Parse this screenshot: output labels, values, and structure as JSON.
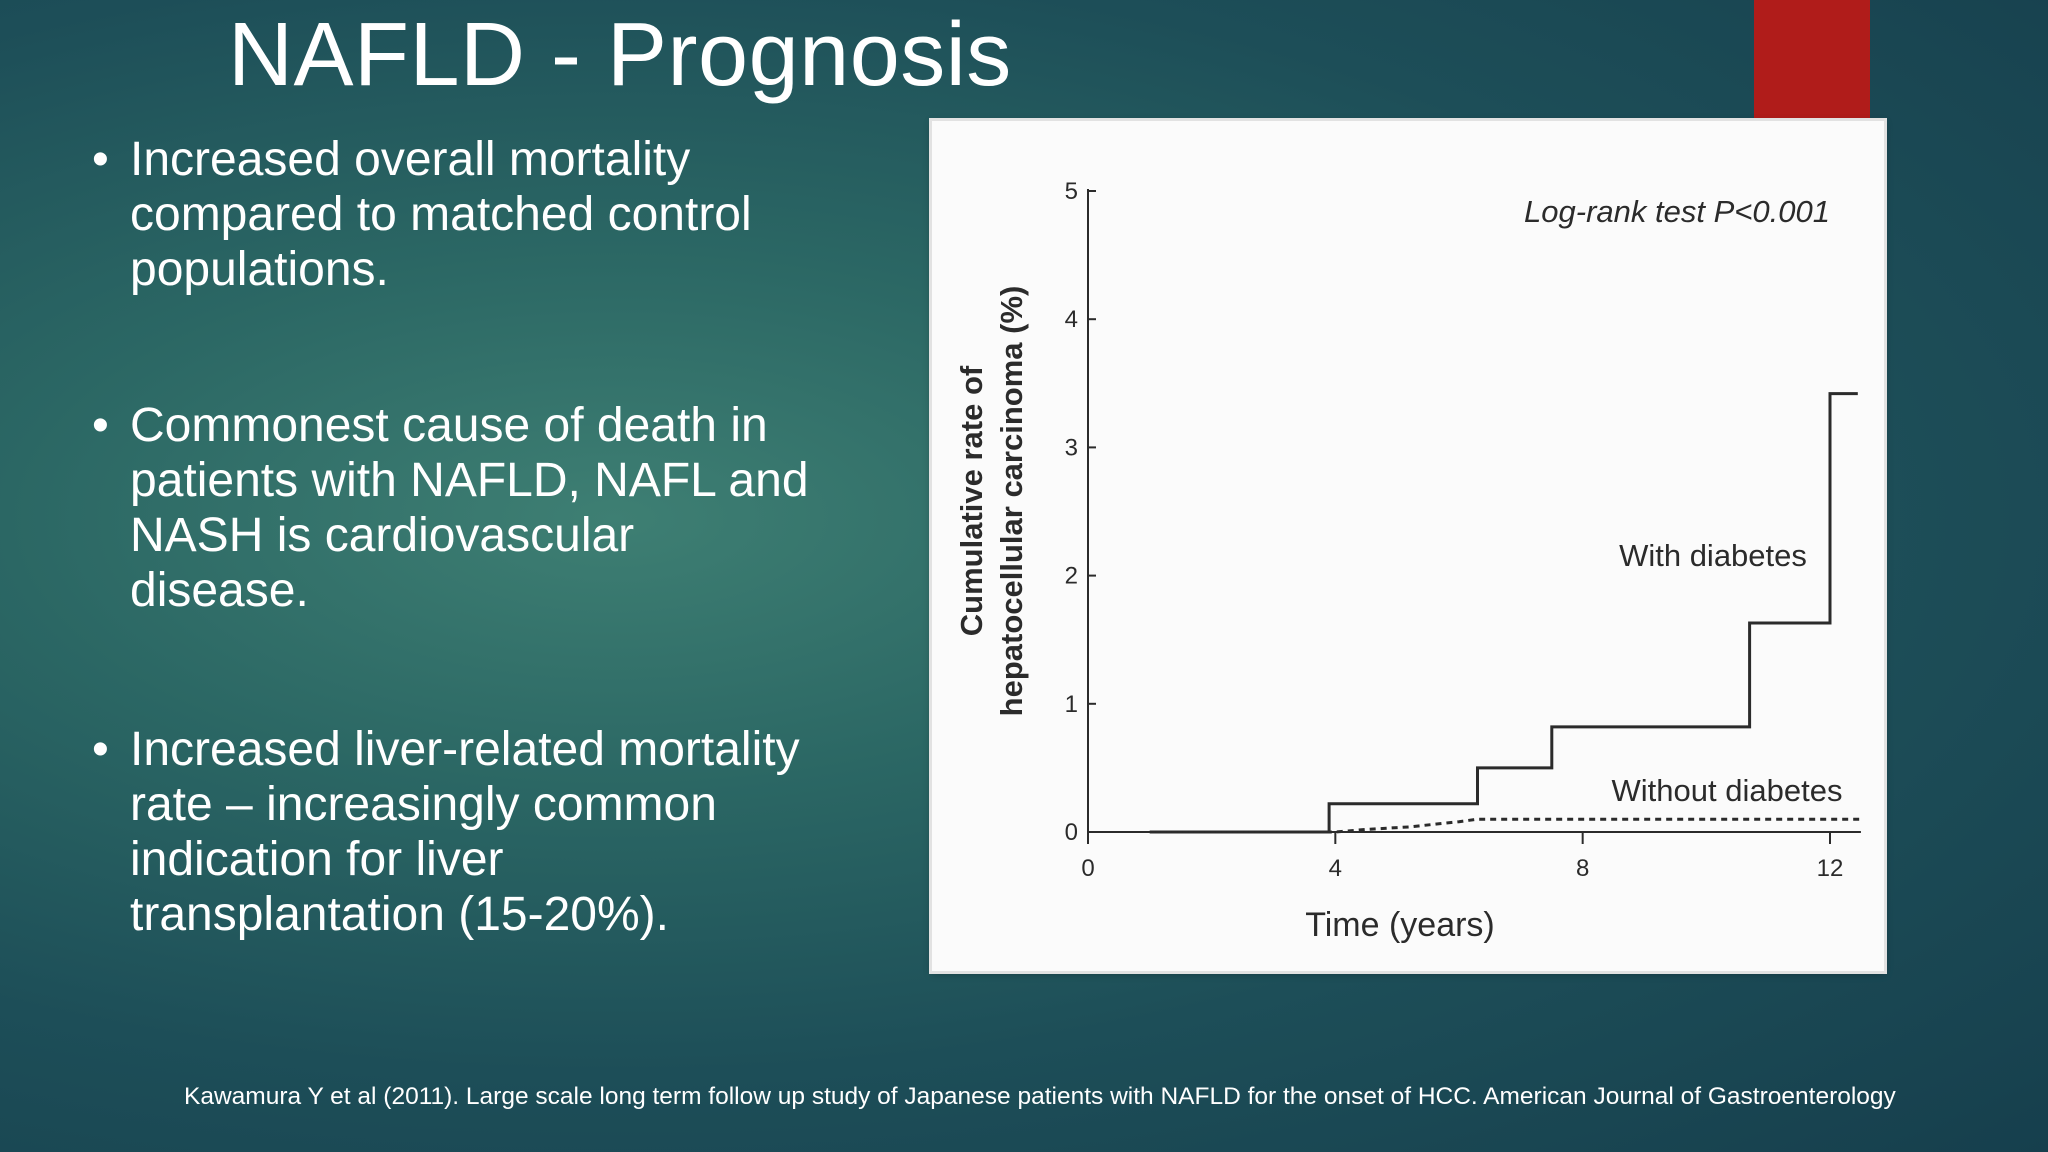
{
  "slide": {
    "title": "NAFLD - Prognosis",
    "bullet_glyph": "•",
    "bullets": [
      {
        "lines": [
          "Increased overall mortality",
          "compared to matched control",
          "populations."
        ]
      },
      {
        "lines": [
          "Commonest cause of death in",
          "patients with NAFLD, NAFL and",
          "NASH is cardiovascular",
          "disease."
        ]
      },
      {
        "lines": [
          "Increased liver-related mortality",
          "rate – increasingly common",
          "indication for liver",
          "transplantation (15-20%)."
        ]
      }
    ],
    "citation": "Kawamura Y et al (2011). Large scale long term follow up study of Japanese patients with NAFLD for the onset of HCC. American Journal of Gastroenterology",
    "accent_color": "#b01c1a"
  },
  "chart_data": {
    "type": "line",
    "step": true,
    "xlabel": "Time (years)",
    "ylabel_lines": [
      "Cumulative rate of",
      "hepatocellular carcinoma (%)"
    ],
    "xlim": [
      0,
      12.5
    ],
    "ylim": [
      0,
      5
    ],
    "xticks": [
      0,
      4,
      8,
      12
    ],
    "yticks": [
      0,
      1,
      2,
      3,
      4,
      5
    ],
    "annotation": "Log-rank test P<0.001",
    "grid": false,
    "series": [
      {
        "name": "With diabetes",
        "style": "solid",
        "points": [
          [
            1,
            0
          ],
          [
            3.9,
            0
          ],
          [
            3.9,
            0.22
          ],
          [
            6.3,
            0.22
          ],
          [
            6.3,
            0.5
          ],
          [
            7.5,
            0.5
          ],
          [
            7.5,
            0.82
          ],
          [
            10.7,
            0.82
          ],
          [
            10.7,
            1.63
          ],
          [
            12.0,
            1.63
          ],
          [
            12.0,
            3.42
          ],
          [
            12.45,
            3.42
          ]
        ]
      },
      {
        "name": "Without diabetes",
        "style": "dotted",
        "points": [
          [
            1,
            0
          ],
          [
            4.0,
            0
          ],
          [
            4.5,
            0.02
          ],
          [
            5.2,
            0.04
          ],
          [
            6.0,
            0.08
          ],
          [
            6.3,
            0.1
          ],
          [
            12.5,
            0.1
          ]
        ]
      }
    ]
  }
}
